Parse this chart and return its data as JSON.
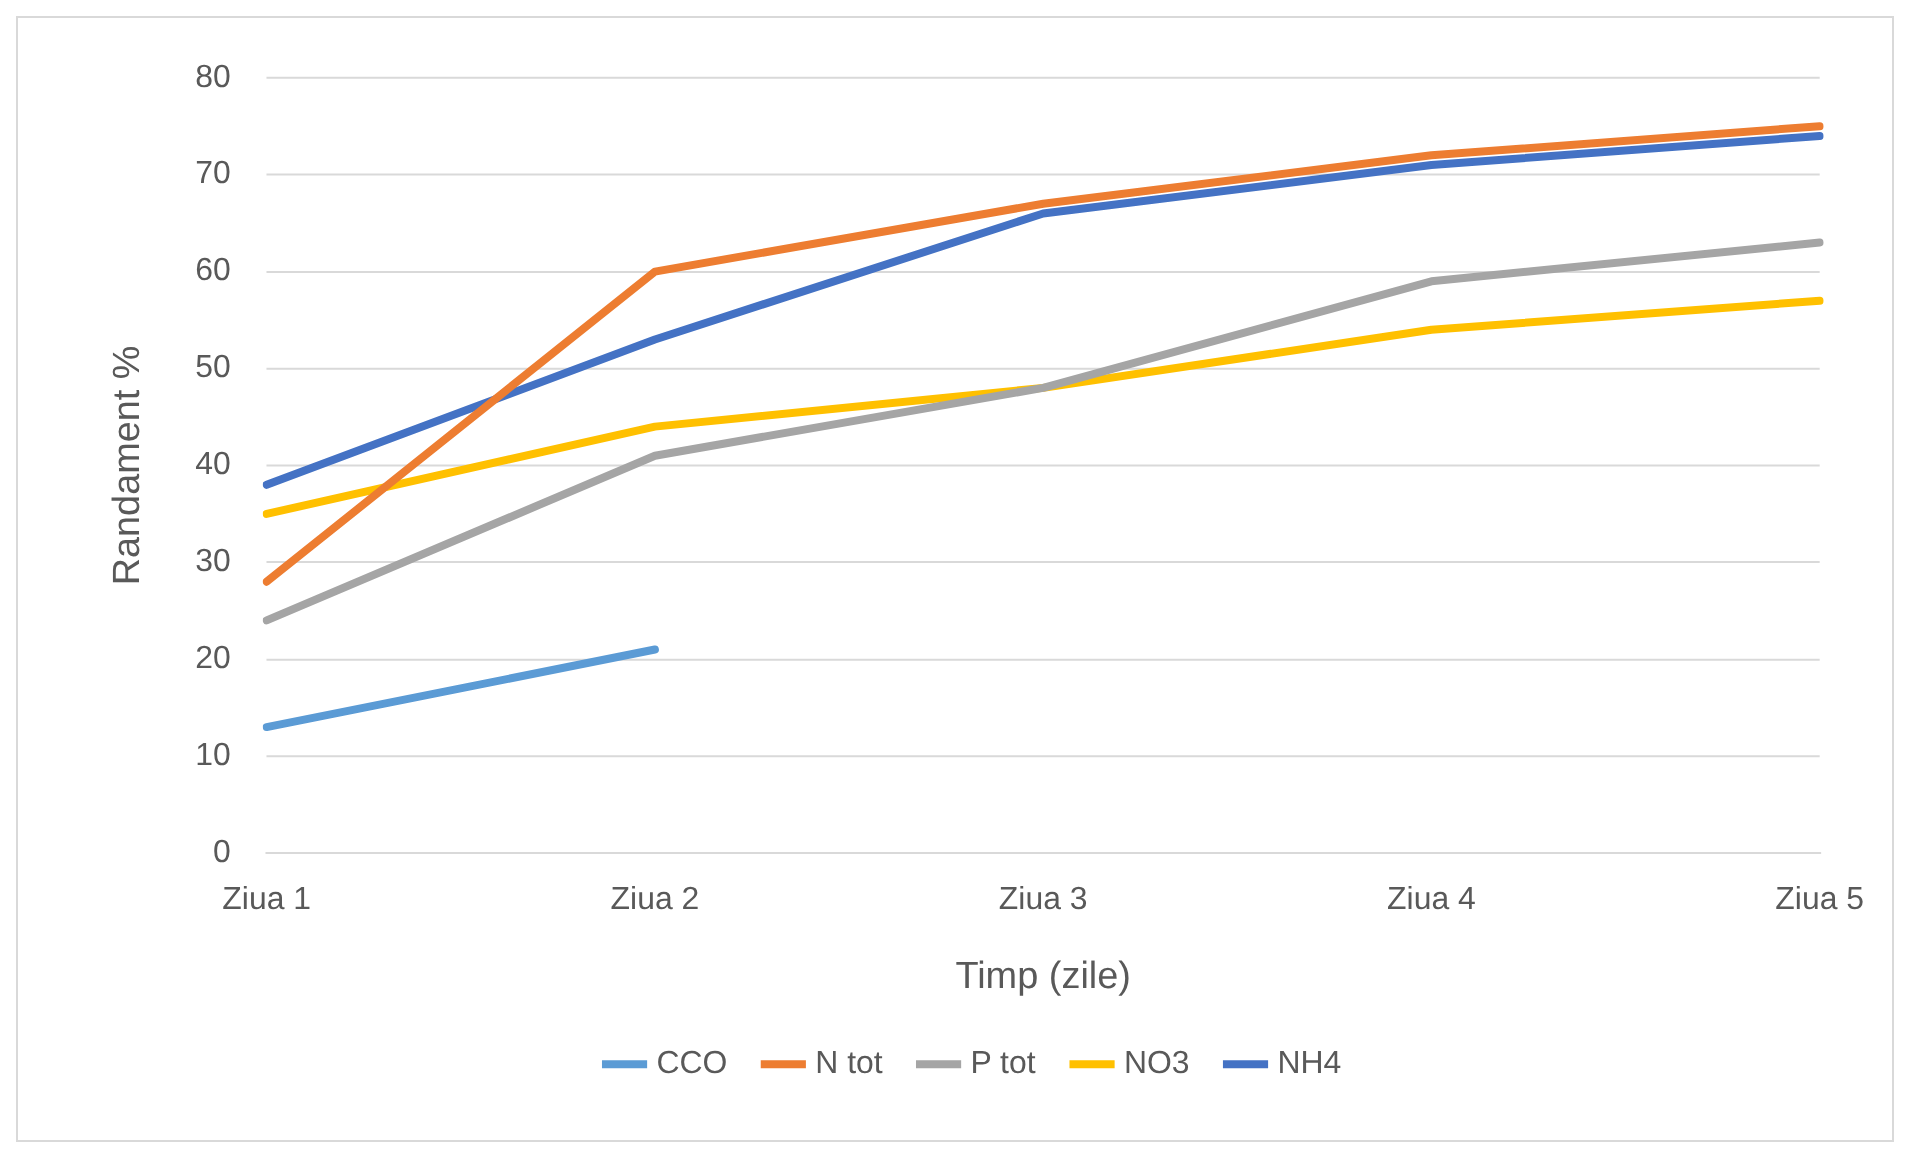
{
  "chart_data": {
    "type": "line",
    "xlabel": "Timp (zile)",
    "ylabel": "Randament %",
    "categories": [
      "Ziua 1",
      "Ziua 2",
      "Ziua 3",
      "Ziua 4",
      "Ziua 5"
    ],
    "series": [
      {
        "name": "CCO",
        "color": "#5b9bd5",
        "values": [
          13,
          21,
          null,
          null,
          null
        ]
      },
      {
        "name": "N tot",
        "color": "#ed7d31",
        "values": [
          28,
          60,
          67,
          72,
          75
        ]
      },
      {
        "name": "P tot",
        "color": "#a5a5a5",
        "values": [
          24,
          41,
          48,
          59,
          63
        ]
      },
      {
        "name": "NO3",
        "color": "#ffc000",
        "values": [
          35,
          44,
          48,
          54,
          57
        ]
      },
      {
        "name": "NH4",
        "color": "#4472c4",
        "values": [
          38,
          53,
          66,
          71,
          74
        ]
      }
    ],
    "ylim": [
      0,
      80
    ],
    "yticks": [
      0,
      10,
      20,
      30,
      40,
      50,
      60,
      70,
      80
    ],
    "grid": "y",
    "legend": "bottom",
    "marker": "none",
    "line_style": "solid"
  }
}
